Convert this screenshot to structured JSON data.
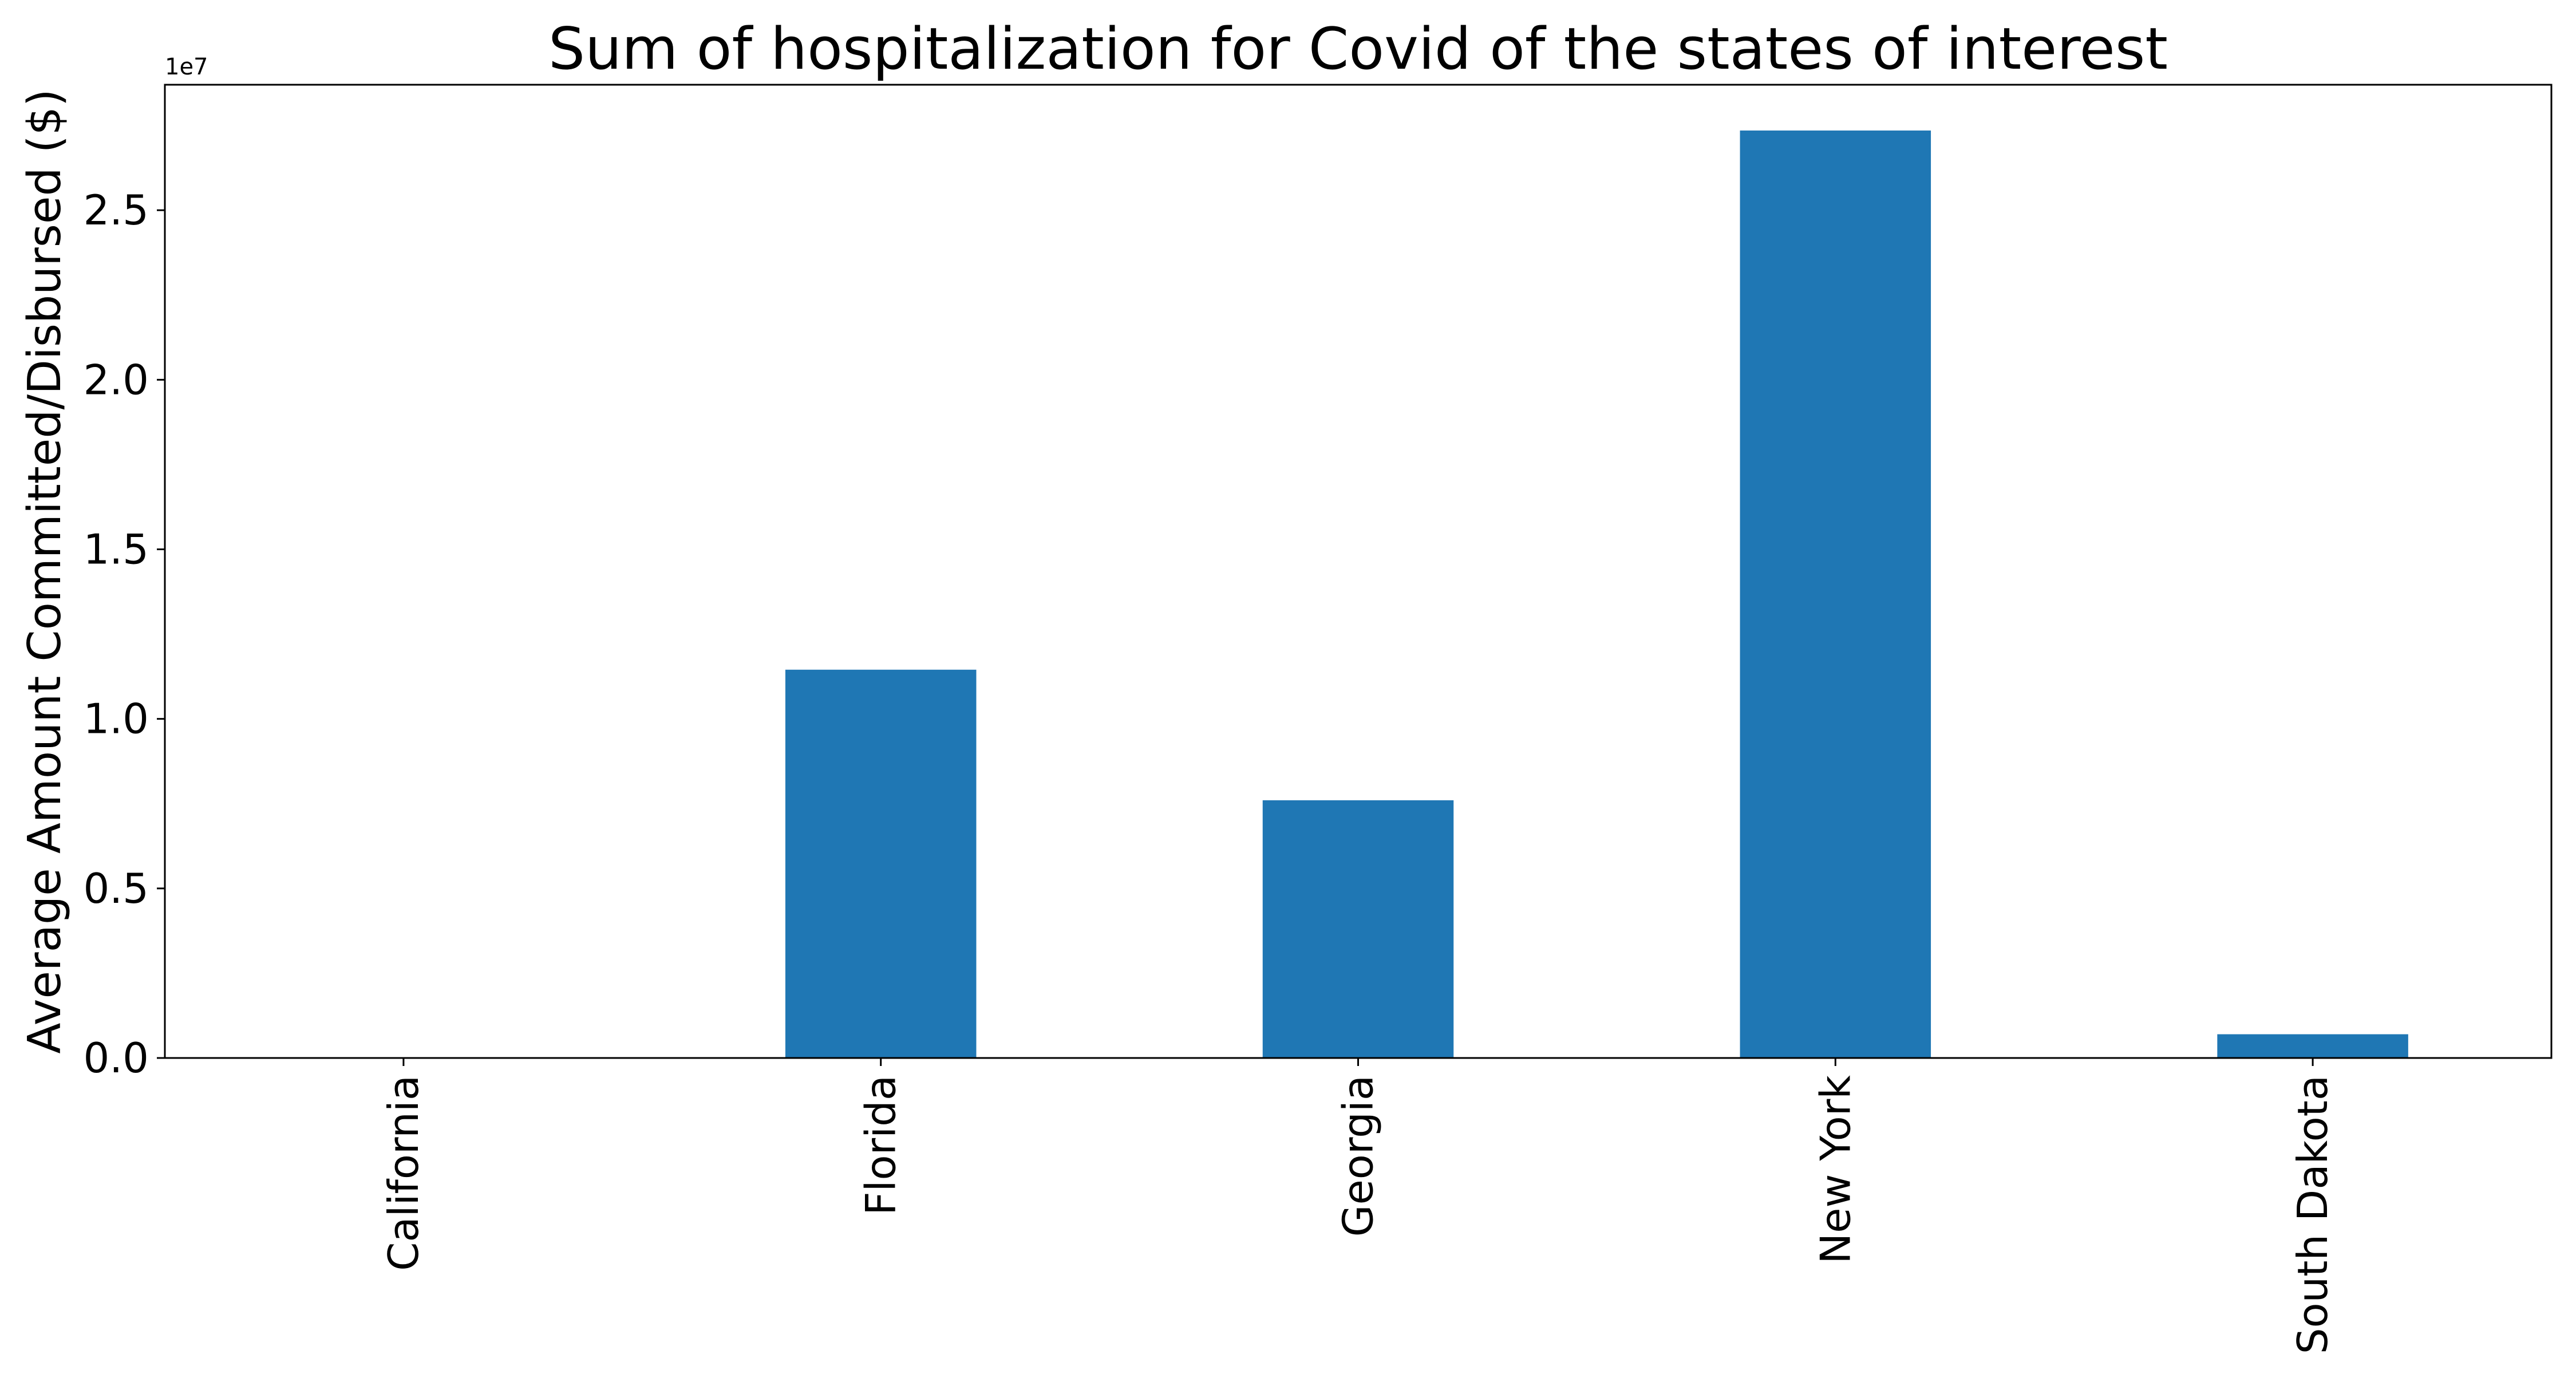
{
  "chart_data": {
    "type": "bar",
    "title": "Sum of hospitalization for Covid of the states of interest",
    "xlabel": "",
    "ylabel": "Average Amount Committed/Disbursed ($)",
    "y_offset_label": "1e7",
    "categories": [
      "California",
      "Florida",
      "Georgia",
      "New York",
      "South Dakota"
    ],
    "values": [
      0,
      11450000,
      7600000,
      27350000,
      700000
    ],
    "ylim": [
      0,
      28700000
    ],
    "yticks": [
      {
        "value": 0,
        "label": "0.0"
      },
      {
        "value": 5000000,
        "label": "0.5"
      },
      {
        "value": 10000000,
        "label": "1.0"
      },
      {
        "value": 15000000,
        "label": "1.5"
      },
      {
        "value": 20000000,
        "label": "2.0"
      },
      {
        "value": 25000000,
        "label": "2.5"
      }
    ],
    "grid": false,
    "legend": "none",
    "bar_color": "#1f77b4"
  }
}
